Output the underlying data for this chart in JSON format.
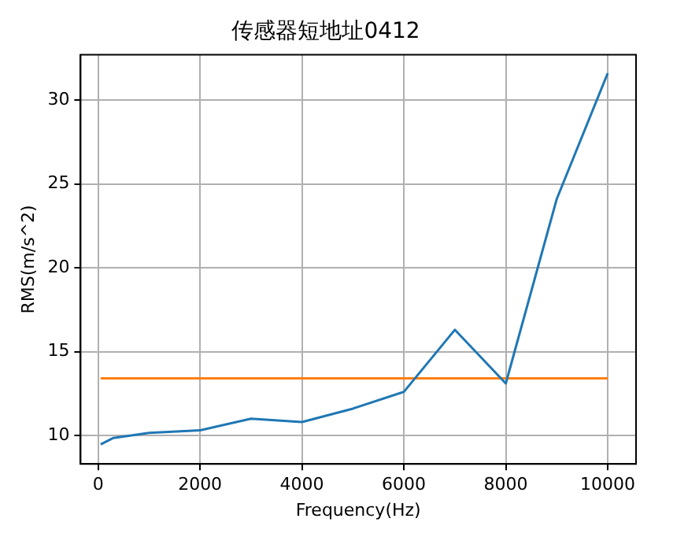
{
  "chart_data": {
    "type": "line",
    "title": "传感器短地址0412",
    "xlabel": "Frequency(Hz)",
    "ylabel": "RMS(m/s^2)",
    "xlim": [
      -344,
      10556
    ],
    "xticks": [
      0,
      2000,
      4000,
      6000,
      8000,
      10000
    ],
    "ylim": [
      8.3,
      32.7
    ],
    "yticks": [
      10,
      15,
      20,
      25,
      30
    ],
    "grid": true,
    "series": [
      {
        "color": "#1f77b4",
        "x": [
          50,
          300,
          1000,
          2000,
          3000,
          4000,
          5000,
          6000,
          7000,
          8000,
          9000,
          10000
        ],
        "values": [
          9.47,
          9.85,
          10.15,
          10.3,
          11.0,
          10.8,
          11.6,
          12.6,
          16.3,
          13.1,
          24.1,
          31.6
        ]
      },
      {
        "color": "#ff7f0e",
        "x": [
          50,
          10000
        ],
        "values": [
          13.4,
          13.4
        ]
      }
    ]
  }
}
